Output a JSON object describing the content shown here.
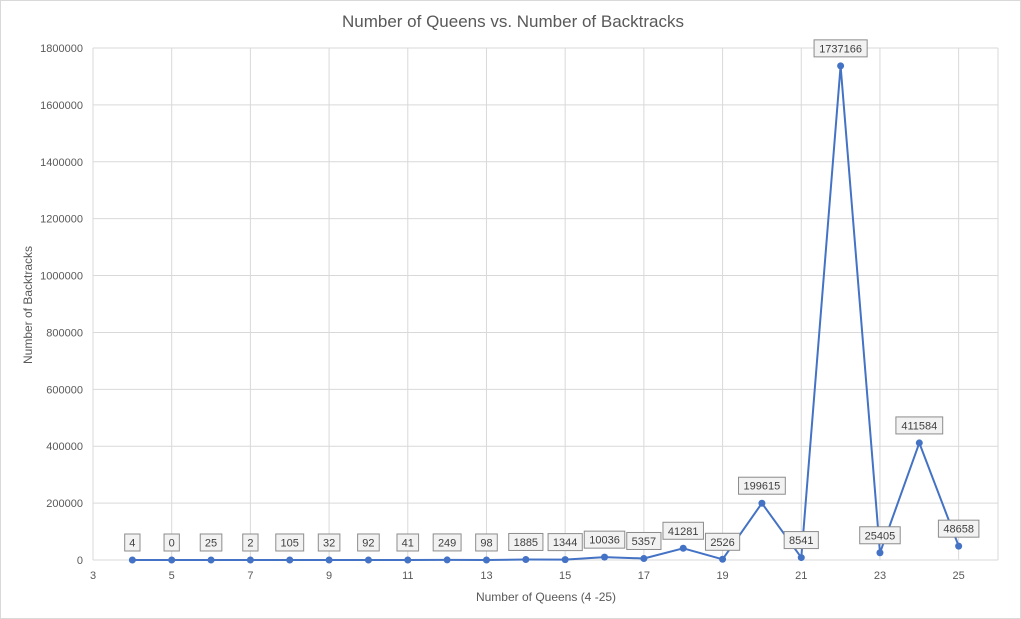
{
  "chart_data": {
    "type": "line",
    "title": "Number of Queens vs. Number of Backtracks",
    "xlabel": "Number of Queens (4 -25)",
    "ylabel": "Number of Backtracks",
    "xlim": [
      3,
      26
    ],
    "ylim": [
      0,
      1800000
    ],
    "x_ticks": [
      "3",
      "5",
      "7",
      "9",
      "11",
      "13",
      "15",
      "17",
      "19",
      "21",
      "23",
      "25"
    ],
    "y_ticks": [
      "0",
      "200000",
      "400000",
      "600000",
      "800000",
      "1000000",
      "1200000",
      "1400000",
      "1600000",
      "1800000"
    ],
    "grid": true,
    "series": [
      {
        "x": [
          4,
          5,
          6,
          7,
          8,
          9,
          10,
          11,
          12,
          13,
          14,
          15,
          16,
          17,
          18,
          19,
          20,
          21,
          22,
          23,
          24,
          25
        ],
        "values": [
          4,
          0,
          25,
          2,
          105,
          32,
          92,
          41,
          249,
          98,
          1885,
          1344,
          10036,
          5357,
          41281,
          2526,
          199615,
          8541,
          1737166,
          25405,
          411584,
          48658
        ],
        "labels": [
          "4",
          "0",
          "25",
          "2",
          "105",
          "32",
          "92",
          "41",
          "249",
          "98",
          "1885",
          "1344",
          "10036",
          "5357",
          "41281",
          "2526",
          "199615",
          "8541",
          "1737166",
          "25405",
          "411584",
          "48658"
        ]
      }
    ],
    "colors": {
      "line": "#4472c4",
      "grid": "#d9d9d9",
      "text": "#595959"
    }
  }
}
